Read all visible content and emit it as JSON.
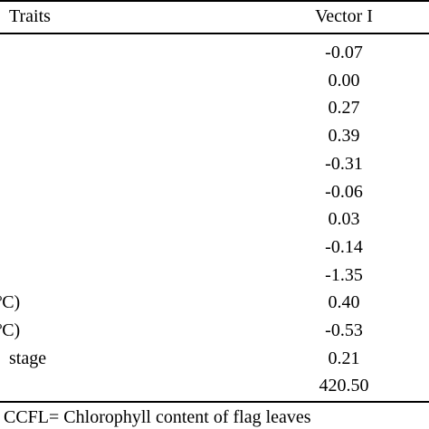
{
  "table": {
    "header": {
      "traits": "Traits",
      "vector": "Vector I"
    },
    "rows": [
      {
        "value": "-0.07"
      },
      {
        "value": "0.00"
      },
      {
        "value": "0.27"
      },
      {
        "trait": ")",
        "value": "0.39"
      },
      {
        "trait": ")",
        "value": "-0.31"
      },
      {
        "value": "-0.06"
      },
      {
        "value": "0.03"
      },
      {
        "value": "-0.14"
      },
      {
        "value": "-1.35"
      },
      {
        "trait": "ºC)",
        "value": "0.40"
      },
      {
        "trait": "ºC)",
        "value": "-0.53"
      },
      {
        "trait": "stage",
        "value": "0.21"
      },
      {
        "value": "420.50"
      }
    ],
    "footnote": "CCFL= Chlorophyll content of flag leaves"
  }
}
